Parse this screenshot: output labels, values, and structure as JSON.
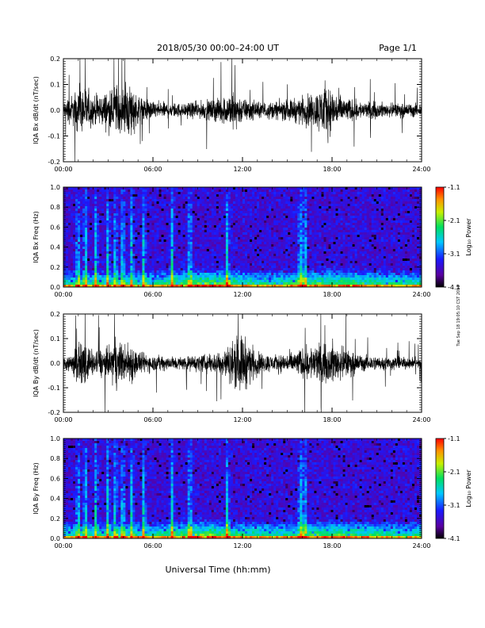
{
  "header": {
    "title": "2018/05/30  00:00–24:00 UT",
    "page": "Page 1/1"
  },
  "footer": {
    "xlabel": "Universal Time (hh:mm)"
  },
  "side_note": "Tue Sep 18 19:05:10 CST 2018",
  "colorbar": {
    "label": "Log₁₀ Power",
    "ticks": [
      "-1.1",
      "-2.1",
      "-3.1",
      "-4.1"
    ],
    "range": [
      -4.1,
      -1.1
    ]
  },
  "chart_data": [
    {
      "type": "line",
      "ylabel": "IQA Bx dB/dt (nT/sec)",
      "ylim": [
        -0.2,
        0.2
      ],
      "yticks": [
        "0.2",
        "0.1",
        "0.0",
        "-0.1",
        "-0.2"
      ],
      "xlim_hours": [
        0,
        24
      ],
      "xticks": [
        "00:00",
        "06:00",
        "12:00",
        "18:00",
        "24:00"
      ],
      "amplitude_envelope": {
        "hours": [
          0,
          1,
          1.5,
          2,
          3,
          3.5,
          4,
          4.5,
          5,
          6,
          8,
          10,
          11,
          11.5,
          12,
          13,
          14,
          15,
          16,
          17,
          17.5,
          18,
          19,
          20,
          22,
          24
        ],
        "values": [
          0.05,
          0.12,
          0.15,
          0.08,
          0.11,
          0.16,
          0.12,
          0.17,
          0.08,
          0.05,
          0.04,
          0.06,
          0.09,
          0.12,
          0.07,
          0.05,
          0.05,
          0.06,
          0.08,
          0.11,
          0.17,
          0.12,
          0.07,
          0.05,
          0.04,
          0.04
        ]
      }
    },
    {
      "type": "heatmap",
      "ylabel": "IQA Bx Freq (Hz)",
      "ylim": [
        0.0,
        1.0
      ],
      "yticks": [
        "1.0",
        "0.8",
        "0.6",
        "0.4",
        "0.2",
        "0.0"
      ],
      "xlim_hours": [
        0,
        24
      ],
      "xticks": [
        "00:00",
        "06:00",
        "12:00",
        "18:00",
        "24:00"
      ],
      "zlabel": "Log₁₀ Power",
      "zlim": [
        -4.1,
        -1.1
      ]
    },
    {
      "type": "line",
      "ylabel": "IQA By dB/dt (nT/sec)",
      "ylim": [
        -0.2,
        0.2
      ],
      "yticks": [
        "0.2",
        "0.1",
        "0.0",
        "-0.1",
        "-0.2"
      ],
      "xlim_hours": [
        0,
        24
      ],
      "xticks": [
        "00:00",
        "06:00",
        "12:00",
        "18:00",
        "24:00"
      ],
      "amplitude_envelope": {
        "hours": [
          0,
          1,
          1.5,
          2,
          3,
          3.5,
          4,
          4.5,
          5,
          6,
          8,
          10,
          11,
          11.5,
          12,
          12.5,
          13,
          14,
          15,
          16,
          17,
          17.5,
          18,
          19,
          20,
          22,
          24
        ],
        "values": [
          0.04,
          0.1,
          0.13,
          0.07,
          0.1,
          0.15,
          0.11,
          0.14,
          0.07,
          0.05,
          0.04,
          0.06,
          0.1,
          0.15,
          0.18,
          0.12,
          0.07,
          0.05,
          0.06,
          0.09,
          0.12,
          0.1,
          0.13,
          0.08,
          0.05,
          0.04,
          0.03
        ]
      }
    },
    {
      "type": "heatmap",
      "ylabel": "IQA By Freq (Hz)",
      "ylim": [
        0.0,
        1.0
      ],
      "yticks": [
        "1.0",
        "0.8",
        "0.6",
        "0.4",
        "0.2",
        "0.0"
      ],
      "xlim_hours": [
        0,
        24
      ],
      "xticks": [
        "00:00",
        "06:00",
        "12:00",
        "18:00",
        "24:00"
      ],
      "zlabel": "Log₁₀ Power",
      "zlim": [
        -4.1,
        -1.1
      ]
    }
  ]
}
